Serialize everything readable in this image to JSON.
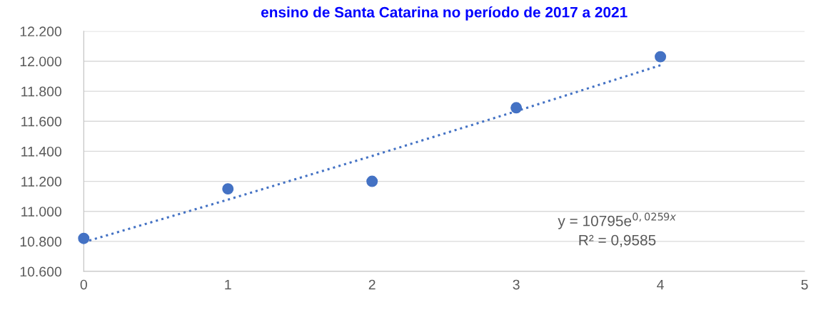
{
  "chart_data": {
    "type": "scatter",
    "title": "ensino de Santa Catarina no período de 2017 a 2021",
    "x": [
      0,
      1,
      2,
      3,
      4
    ],
    "series": [
      {
        "color": "#4472c4",
        "values": [
          10820,
          11150,
          11200,
          11690,
          12030
        ],
        "marker": "circle"
      },
      {
        "type": "line",
        "color": "#4472c4",
        "x": [
          0,
          1,
          2,
          3,
          4
        ],
        "values": [
          10795,
          11078,
          11369,
          11667,
          11973
        ],
        "line_style": "dotted",
        "marker": "none"
      }
    ],
    "xlim": [
      0,
      5
    ],
    "xticks": [
      0,
      1,
      2,
      3,
      4,
      5
    ],
    "ylim": [
      10600,
      12200
    ],
    "yticks": [
      {
        "value": 10600,
        "label": "10.600"
      },
      {
        "value": 10800,
        "label": "10.800"
      },
      {
        "value": 11000,
        "label": "11.000"
      },
      {
        "value": 11200,
        "label": "11.200"
      },
      {
        "value": 11400,
        "label": "11.400"
      },
      {
        "value": 11600,
        "label": "11.600"
      },
      {
        "value": 11800,
        "label": "11.800"
      },
      {
        "value": 12000,
        "label": "12.000"
      },
      {
        "value": 12200,
        "label": "12.200"
      }
    ],
    "grid": "y",
    "annotations": [
      "y = 10795e$^{0,0259x}$",
      "R² = 0,9585"
    ]
  }
}
